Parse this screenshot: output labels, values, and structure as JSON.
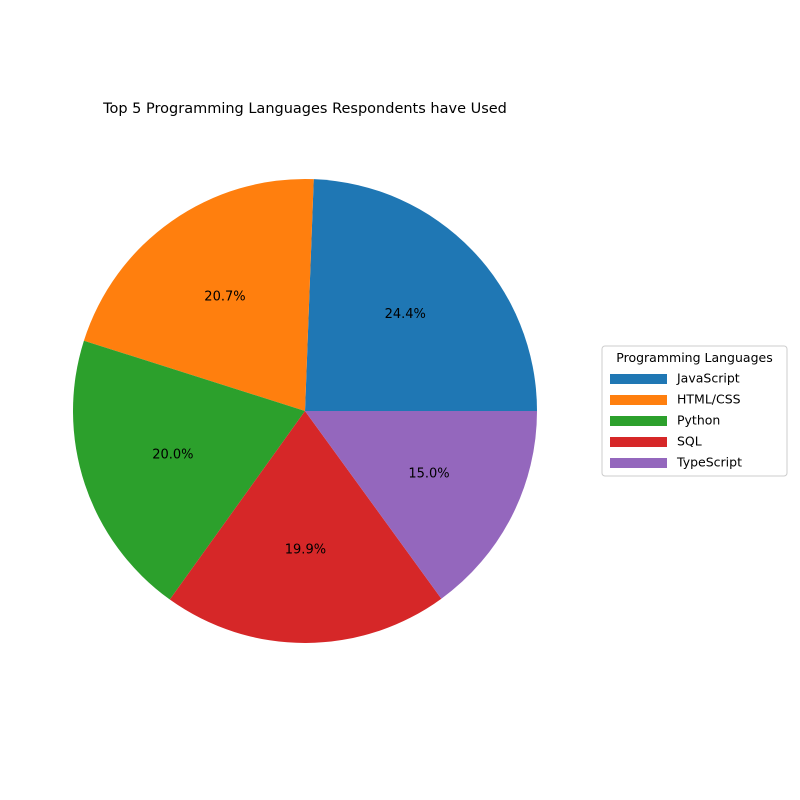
{
  "chart_data": {
    "type": "pie",
    "title": "Top 5 Programming Languages Respondents have Used",
    "categories": [
      "JavaScript",
      "HTML/CSS",
      "Python",
      "SQL",
      "TypeScript"
    ],
    "values": [
      24.4,
      20.7,
      20.0,
      19.9,
      15.0
    ],
    "value_labels": [
      "24.4%",
      "20.7%",
      "20.0%",
      "19.9%",
      "15.0%"
    ],
    "colors": [
      "#1f77b4",
      "#ff7f0e",
      "#2ca02c",
      "#d62728",
      "#9467bd"
    ],
    "start_angle_deg": 0,
    "direction": "counterclockwise",
    "legend": {
      "title": "Programming Languages",
      "placement": "center-right"
    }
  }
}
